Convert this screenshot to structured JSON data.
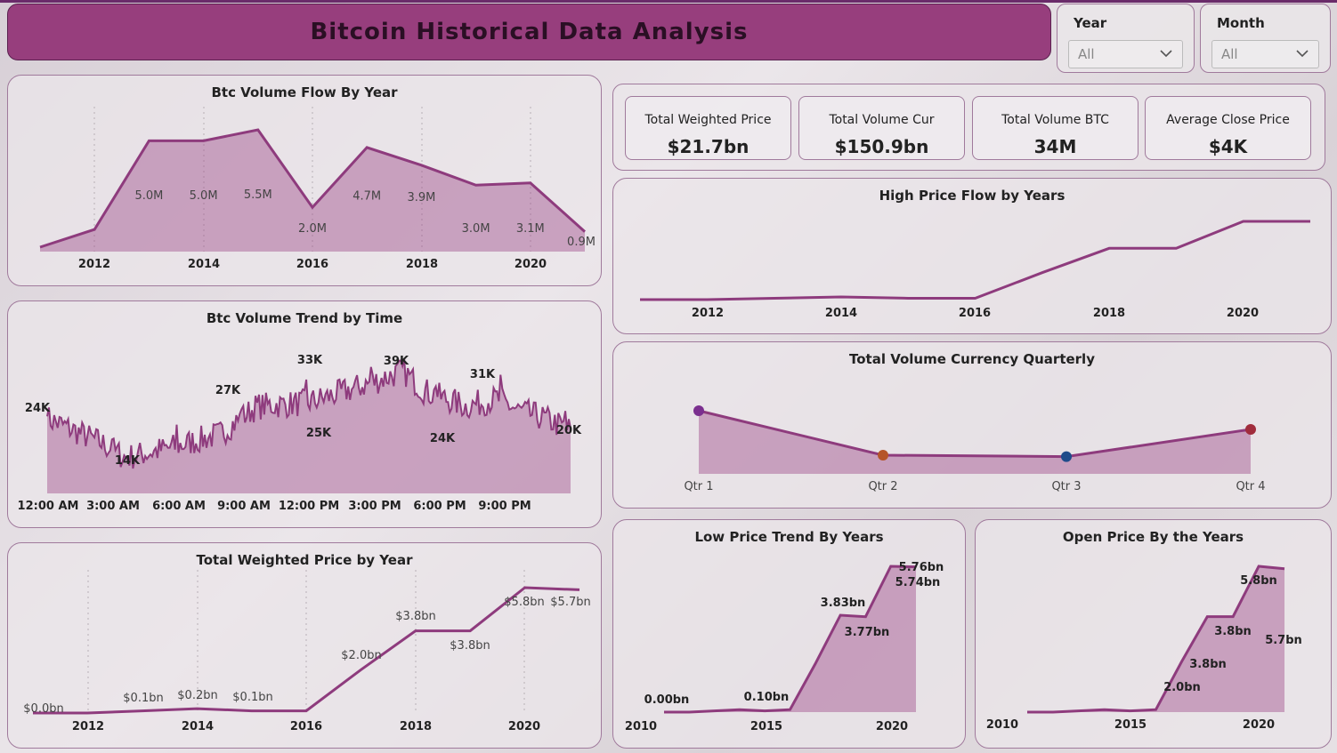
{
  "header": {
    "title": "Bitcoin Historical Data Analysis"
  },
  "filters": [
    {
      "label": "Year",
      "value": "All"
    },
    {
      "label": "Month",
      "value": "All"
    }
  ],
  "cards": [
    {
      "label": "Total Weighted Price",
      "value": "$21.7bn"
    },
    {
      "label": "Total Volume Cur",
      "value": "$150.9bn"
    },
    {
      "label": "Total Volume BTC",
      "value": "34M"
    },
    {
      "label": "Average Close Price",
      "value": "$4K"
    }
  ],
  "colors": {
    "accent": "#973e7d",
    "line": "#8e3b7d",
    "q1": "#7b2f8f",
    "q2": "#b5552a",
    "q3": "#1f4b8a",
    "q4": "#a02c3c"
  },
  "charts": {
    "volume_flow": {
      "title": "Btc Volume Flow By Year",
      "type": "area",
      "x": [
        2011,
        2012,
        2013,
        2014,
        2015,
        2016,
        2017,
        2018,
        2019,
        2020,
        2021
      ],
      "values": [
        0.2,
        1.0,
        5.0,
        5.0,
        5.5,
        2.0,
        4.7,
        3.9,
        3.0,
        3.1,
        0.9
      ],
      "labels": [
        "",
        "",
        "5.0M",
        "5.0M",
        "5.5M",
        "2.0M",
        "4.7M",
        "3.9M",
        "3.0M",
        "3.1M",
        "0.9M"
      ],
      "ticks": [
        "2012",
        "2014",
        "2016",
        "2018",
        "2020"
      ]
    },
    "volume_time": {
      "title": "Btc Volume Trend by Time",
      "type": "area",
      "ticks": [
        "12:00 AM",
        "3:00 AM",
        "6:00 AM",
        "9:00 AM",
        "12:00 PM",
        "3:00 PM",
        "6:00 PM",
        "9:00 PM"
      ],
      "labels": [
        "24K",
        "14K",
        "27K",
        "33K",
        "25K",
        "39K",
        "24K",
        "31K",
        "20K"
      ]
    },
    "weighted_price": {
      "title": "Total Weighted Price by Year",
      "type": "area",
      "x": [
        2011,
        2012,
        2013,
        2014,
        2015,
        2016,
        2017,
        2018,
        2019,
        2020,
        2021
      ],
      "values": [
        0.0,
        0.0,
        0.1,
        0.2,
        0.1,
        0.1,
        2.0,
        3.8,
        3.8,
        5.8,
        5.7
      ],
      "labels": [
        "$0.0bn",
        "",
        "$0.1bn",
        "$0.2bn",
        "$0.1bn",
        "",
        "$2.0bn",
        "$3.8bn",
        "$3.8bn",
        "$5.8bn",
        "$5.7bn"
      ],
      "ticks": [
        "2012",
        "2014",
        "2016",
        "2018",
        "2020"
      ]
    },
    "high_price": {
      "title": "High Price Flow by Years",
      "type": "line",
      "ticks": [
        "2012",
        "2014",
        "2016",
        "2018",
        "2020"
      ]
    },
    "quarterly": {
      "title": "Total Volume Currency Quarterly",
      "type": "line",
      "categories": [
        "Qtr 1",
        "Qtr 2",
        "Qtr 3",
        "Qtr 4"
      ]
    },
    "low_price": {
      "title": "Low Price Trend By Years",
      "type": "area",
      "labels": [
        "0.00bn",
        "0.10bn",
        "3.83bn",
        "3.77bn",
        "5.76bn",
        "5.74bn"
      ],
      "ticks": [
        "2010",
        "2015",
        "2020"
      ]
    },
    "open_price": {
      "title": "Open Price By the Years",
      "type": "area",
      "labels": [
        "2.0bn",
        "3.8bn",
        "3.8bn",
        "5.8bn",
        "5.7bn"
      ],
      "ticks": [
        "2010",
        "2015",
        "2020"
      ]
    }
  },
  "chart_data": [
    {
      "type": "area",
      "title": "Btc Volume Flow By Year",
      "x": [
        2011,
        2012,
        2013,
        2014,
        2015,
        2016,
        2017,
        2018,
        2019,
        2020,
        2021
      ],
      "values": [
        0.2,
        1.0,
        5.0,
        5.0,
        5.5,
        2.0,
        4.7,
        3.9,
        3.0,
        3.1,
        0.9
      ],
      "unit": "M"
    },
    {
      "type": "area",
      "title": "Total Weighted Price by Year",
      "x": [
        2011,
        2012,
        2013,
        2014,
        2015,
        2016,
        2017,
        2018,
        2019,
        2020,
        2021
      ],
      "values": [
        0.0,
        0.0,
        0.1,
        0.2,
        0.1,
        0.1,
        2.0,
        3.8,
        3.8,
        5.8,
        5.7
      ],
      "unit": "$bn"
    },
    {
      "type": "line",
      "title": "High Price Flow by Years",
      "x": [
        2011,
        2012,
        2013,
        2014,
        2015,
        2016,
        2017,
        2018,
        2019,
        2020,
        2021
      ],
      "values": [
        0.0,
        0.0,
        0.1,
        0.2,
        0.1,
        0.1,
        2.0,
        3.8,
        3.8,
        5.8,
        5.8
      ]
    },
    {
      "type": "line",
      "title": "Total Volume Currency Quarterly",
      "categories": [
        "Qtr 1",
        "Qtr 2",
        "Qtr 3",
        "Qtr 4"
      ],
      "values": [
        44,
        13,
        12,
        31
      ]
    },
    {
      "type": "area",
      "title": "Low Price Trend By Years",
      "x": [
        2011,
        2012,
        2013,
        2014,
        2015,
        2016,
        2017,
        2018,
        2019,
        2020,
        2021
      ],
      "values": [
        0.0,
        0.0,
        0.05,
        0.1,
        0.05,
        0.1,
        1.9,
        3.83,
        3.77,
        5.76,
        5.74
      ],
      "unit": "bn"
    },
    {
      "type": "area",
      "title": "Open Price By the Years",
      "x": [
        2011,
        2012,
        2013,
        2014,
        2015,
        2016,
        2017,
        2018,
        2019,
        2020,
        2021
      ],
      "values": [
        0.0,
        0.0,
        0.05,
        0.1,
        0.05,
        0.1,
        2.0,
        3.8,
        3.8,
        5.8,
        5.7
      ],
      "unit": "bn"
    }
  ]
}
